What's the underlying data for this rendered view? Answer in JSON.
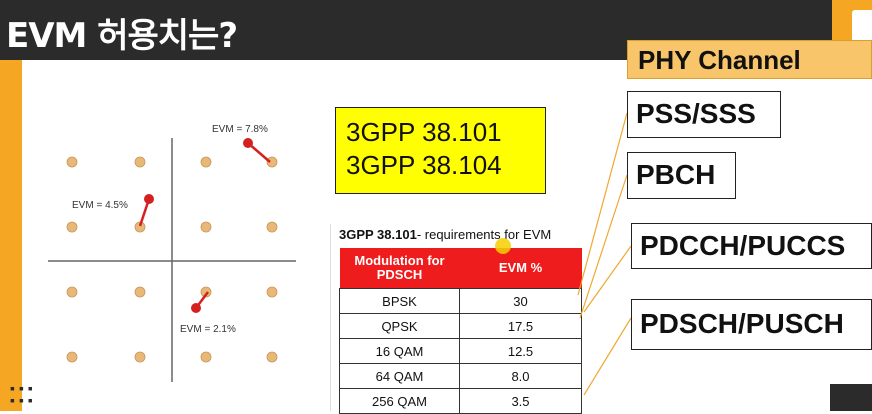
{
  "slide": {
    "title": "EVM 허용치는?",
    "dots": "▪▪▪\n▪▪▪"
  },
  "constellation": {
    "labels": [
      "EVM = 7.8%",
      "EVM = 4.5%",
      "EVM = 2.1%"
    ],
    "point_color": "#e8b878",
    "error_color": "#d42020"
  },
  "spec_box": {
    "line1": "3GPP 38.101",
    "line2": "3GPP 38.104"
  },
  "requirements_table": {
    "caption_bold": "3GPP 38.101",
    "caption_rest": "- requirements for EVM",
    "headers": [
      "Modulation for PDSCH",
      "EVM %"
    ],
    "rows": [
      [
        "BPSK",
        "30"
      ],
      [
        "QPSK",
        "17.5"
      ],
      [
        "16 QAM",
        "12.5"
      ],
      [
        "64 QAM",
        "8.0"
      ],
      [
        "256 QAM",
        "3.5"
      ]
    ]
  },
  "channels": {
    "header": "PHY Channel",
    "items": [
      "PSS/SSS",
      "PBCH",
      "PDCCH/PUCCS",
      "PDSCH/PUSCH"
    ]
  },
  "colors": {
    "accent": "#f5a623",
    "title_bg": "#2b2b2b",
    "table_header": "#ee1c1c",
    "highlight": "#ffff00"
  }
}
